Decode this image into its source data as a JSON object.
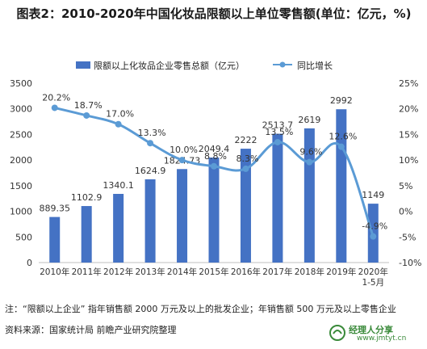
{
  "title": "图表2：2010-2020年中国化妆品限额以上单位零售额(单位：亿元，%)",
  "note": "注：“限额以上企业” 指年销售额 2000 万元及以上的批发企业；年销售额 500 万元及以上零售企业",
  "source": "资料来源：国家统计局 前瞻产业研究院整理",
  "brand": {
    "site_name": "经理人分享",
    "site_url": "www.jmtyt.cn"
  },
  "colors": {
    "bar": "#4472C4",
    "line": "#5B9BD5",
    "axis": "#bfbfbf",
    "text": "#222222"
  },
  "chart_data": {
    "type": "bar",
    "title": "2010-2020年中国化妆品限额以上单位零售额(单位：亿元，%)",
    "legend_position": "top",
    "grid": false,
    "categories": [
      "2010年",
      "2011年",
      "2012年",
      "2013年",
      "2014年",
      "2015年",
      "2016年",
      "2017年",
      "2018年",
      "2019年",
      "2020年\n1-5月"
    ],
    "category_lines": [
      [
        "2010年"
      ],
      [
        "2011年"
      ],
      [
        "2012年"
      ],
      [
        "2013年"
      ],
      [
        "2014年"
      ],
      [
        "2015年"
      ],
      [
        "2016年"
      ],
      [
        "2017年"
      ],
      [
        "2018年"
      ],
      [
        "2019年"
      ],
      [
        "2020年",
        "1-5月"
      ]
    ],
    "series": [
      {
        "name": "限额以上化妆品企业零售总额（亿元）",
        "type": "bar",
        "axis": "left",
        "values": [
          889.35,
          1102.9,
          1340.1,
          1624.9,
          1824.73,
          2049.4,
          2222,
          2513.7,
          2619,
          2992,
          1149
        ],
        "labels": [
          "889.35",
          "1102.9",
          "1340.1",
          "1624.9",
          "1824.73",
          "2049.4",
          "2222",
          "2513.7",
          "2619",
          "2992",
          "1149"
        ]
      },
      {
        "name": "同比增长",
        "type": "line",
        "axis": "right",
        "values": [
          20.2,
          18.7,
          17.0,
          13.3,
          10.0,
          8.8,
          8.3,
          13.5,
          9.6,
          12.6,
          -4.9
        ],
        "labels": [
          "20.2%",
          "18.7%",
          "17.0%",
          "13.3%",
          "10.0%",
          "8.8%",
          "8.3%",
          "13.5%",
          "9.6%",
          "12.6%",
          "-4.9%"
        ]
      }
    ],
    "y_left": {
      "range": [
        0,
        3500
      ],
      "ticks": [
        "0",
        "500",
        "1000",
        "1500",
        "2000",
        "2500",
        "3000",
        "3500"
      ]
    },
    "y_right": {
      "range": [
        -10,
        25
      ],
      "ticks": [
        "-10%",
        "-5%",
        "0%",
        "5%",
        "10%",
        "15%",
        "20%",
        "25%"
      ]
    }
  }
}
